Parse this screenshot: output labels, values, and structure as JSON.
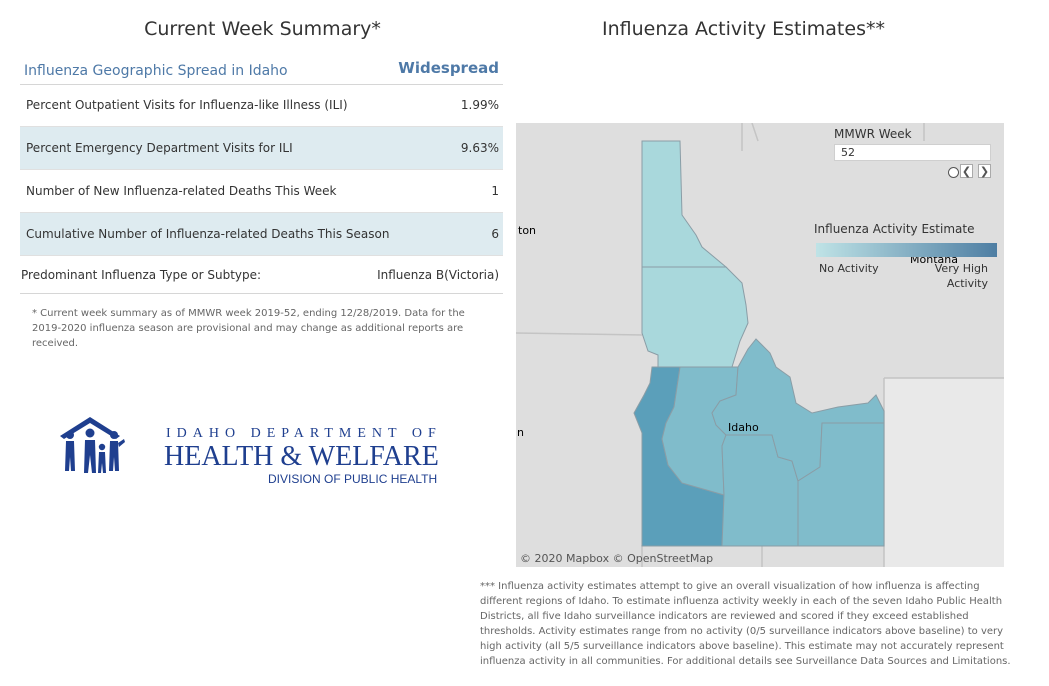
{
  "summary": {
    "title": "Current Week Summary*",
    "spread_label": "Influenza Geographic Spread in Idaho",
    "spread_value": "Widespread",
    "rows": [
      {
        "label": "Percent Outpatient Visits for Influenza-like Illness (ILI)",
        "value": "1.99%"
      },
      {
        "label": "Percent Emergency Department Visits for ILI",
        "value": "9.63%"
      },
      {
        "label": "Number of New Influenza-related Deaths This Week",
        "value": "1"
      },
      {
        "label": "Cumulative Number of Influenza-related Deaths This Season",
        "value": "6"
      }
    ],
    "type_label": "Predominant Influenza Type or Subtype:",
    "type_value": "Influenza B(Victoria)",
    "footnote": "* Current week summary as of MMWR week 2019-52, ending 12/28/2019. Data for the 2019-2020 influenza season are provisional and may change as additional reports are received."
  },
  "logo": {
    "line1": "IDAHO DEPARTMENT OF",
    "line2": "HEALTH & WELFARE",
    "line3": "DIVISION OF PUBLIC HEALTH",
    "color": "#1f3f8f"
  },
  "map": {
    "title": "Influenza Activity Estimates**",
    "mmwr_label": "MMWR Week",
    "mmwr_value": "52",
    "prev_icon": "chevron-left-icon",
    "next_icon": "chevron-right-icon",
    "legend_title": "Influenza Activity Estimate",
    "legend_low": "No Activity",
    "legend_high": "Very High Activity",
    "legend_colors": [
      "#bfe3e6",
      "#4e7ea3"
    ],
    "copyright": "© 2020 Mapbox © OpenStreetMap",
    "places": {
      "ton": "ton",
      "n": "n",
      "idaho": "Idaho",
      "montana": "Montana"
    },
    "district_colors": {
      "panhandle": "#a9d8dc",
      "north_central": "#a9d8dc",
      "southwest": "#5b9fba",
      "central": "#80bccb",
      "south_central": "#80bccb",
      "southeast": "#80bccb",
      "eastern": "#80bccb"
    },
    "footnote": "*** Influenza activity estimates attempt to give an overall visualization of how influenza is affecting different regions of Idaho. To estimate influenza activity weekly in each of the seven Idaho Public Health Districts, all five Idaho surveillance indicators are reviewed and scored if they exceed established thresholds. Activity estimates range from no activity (0/5 surveillance indicators above baseline) to very high activity (all 5/5 surveillance indicators above baseline). This estimate may not accurately represent influenza activity in all communities. For additional details see Surveillance Data Sources and Limitations."
  }
}
